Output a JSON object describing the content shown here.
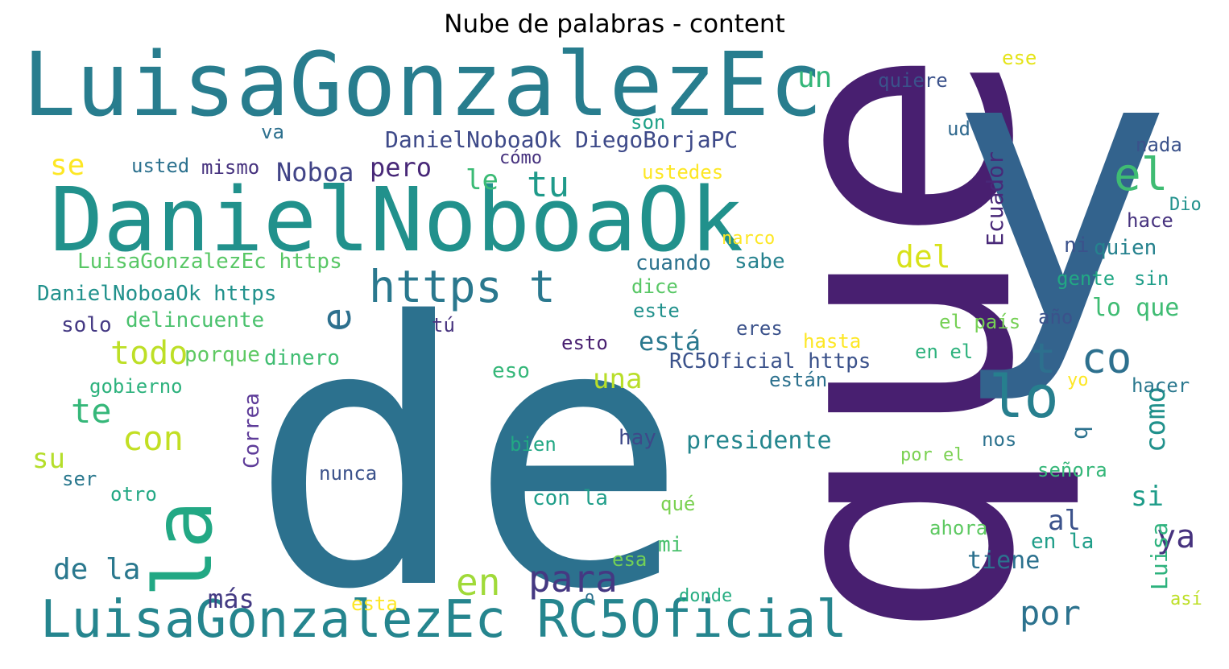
{
  "title": "Nube de palabras - content",
  "chart_data": {
    "type": "wordcloud",
    "title": "Nube de palabras - content",
    "words": [
      {
        "text": "de",
        "color": "#2c718e"
      },
      {
        "text": "que",
        "color": "#481f70"
      },
      {
        "text": "y",
        "color": "#33638d"
      },
      {
        "text": "LuisaGonzalezEc",
        "color": "#287d8e"
      },
      {
        "text": "DanielNoboaOk",
        "color": "#21918c"
      },
      {
        "text": "LuisaGonzalezEc RC5Oficial",
        "color": "#25858e"
      },
      {
        "text": "la",
        "color": "#22a884"
      },
      {
        "text": "https t",
        "color": "#2a788e"
      },
      {
        "text": "lo",
        "color": "#277f8e"
      },
      {
        "text": "t co",
        "color": "#2d708e"
      },
      {
        "text": "el",
        "color": "#3fbc73"
      },
      {
        "text": "e",
        "color": "#2d708e"
      },
      {
        "text": "para",
        "color": "#453882"
      },
      {
        "text": "en",
        "color": "#a0da39"
      },
      {
        "text": "con",
        "color": "#c2df23"
      },
      {
        "text": "te",
        "color": "#35b779"
      },
      {
        "text": "todo",
        "color": "#bddf26"
      },
      {
        "text": "tu",
        "color": "#1f9a8a"
      },
      {
        "text": "un",
        "color": "#34b679"
      },
      {
        "text": "se",
        "color": "#fde725"
      },
      {
        "text": "le",
        "color": "#3bbb75"
      },
      {
        "text": "del",
        "color": "#d8e219"
      },
      {
        "text": "por",
        "color": "#2c728e"
      },
      {
        "text": "ya",
        "color": "#46327e"
      },
      {
        "text": "su",
        "color": "#b5de2b"
      },
      {
        "text": "de la",
        "color": "#2a788e"
      },
      {
        "text": "más",
        "color": "#443a83"
      },
      {
        "text": "pero",
        "color": "#482878"
      },
      {
        "text": "Noboa",
        "color": "#414487"
      },
      {
        "text": "una",
        "color": "#b8de29"
      },
      {
        "text": "está",
        "color": "#2a788e"
      },
      {
        "text": "presidente",
        "color": "#24868e"
      },
      {
        "text": "como",
        "color": "#21918c"
      },
      {
        "text": "si",
        "color": "#1e9c89"
      },
      {
        "text": "al",
        "color": "#3b528b"
      },
      {
        "text": "DanielNoboaOk DiegoBorjaPC",
        "color": "#3e4a89"
      },
      {
        "text": "Ecuador",
        "color": "#482878"
      },
      {
        "text": "lo que",
        "color": "#3fbc73"
      },
      {
        "text": "tiene",
        "color": "#2c718e"
      },
      {
        "text": "Luisa",
        "color": "#2db27d"
      },
      {
        "text": "b",
        "color": "#2c728e"
      },
      {
        "text": "LuisaGonzalezEc https",
        "color": "#58c765"
      },
      {
        "text": "DanielNoboaOk https",
        "color": "#21918c"
      },
      {
        "text": "RC5Oficial https",
        "color": "#3b528b"
      },
      {
        "text": "Correa",
        "color": "#5e3c99"
      },
      {
        "text": "solo",
        "color": "#443983"
      },
      {
        "text": "delincuente",
        "color": "#4ac16d"
      },
      {
        "text": "porque",
        "color": "#5ec962"
      },
      {
        "text": "dinero",
        "color": "#40bd72"
      },
      {
        "text": "usted",
        "color": "#2c718e"
      },
      {
        "text": "mismo",
        "color": "#46327e"
      },
      {
        "text": "va",
        "color": "#2d708e"
      },
      {
        "text": "son",
        "color": "#1fa188"
      },
      {
        "text": "cómo",
        "color": "#46327e"
      },
      {
        "text": "ustedes",
        "color": "#fde725"
      },
      {
        "text": "quiere",
        "color": "#3b528b"
      },
      {
        "text": "ese",
        "color": "#e5e419"
      },
      {
        "text": "ud",
        "color": "#30698e"
      },
      {
        "text": "nada",
        "color": "#3b528b"
      },
      {
        "text": "Dio",
        "color": "#21918c"
      },
      {
        "text": "hace",
        "color": "#46327e"
      },
      {
        "text": "quien",
        "color": "#26828e"
      },
      {
        "text": "ni",
        "color": "#3b528b"
      },
      {
        "text": "narco",
        "color": "#fde725"
      },
      {
        "text": "sabe",
        "color": "#26828e"
      },
      {
        "text": "cuando",
        "color": "#2c728e"
      },
      {
        "text": "dice",
        "color": "#58c765"
      },
      {
        "text": "este",
        "color": "#21918c"
      },
      {
        "text": "gente",
        "color": "#22a884"
      },
      {
        "text": "sin",
        "color": "#1f9e89"
      },
      {
        "text": "año",
        "color": "#3b528b"
      },
      {
        "text": "el país",
        "color": "#75d054"
      },
      {
        "text": "eres",
        "color": "#3b528b"
      },
      {
        "text": "tú",
        "color": "#46327e"
      },
      {
        "text": "esto",
        "color": "#481f70"
      },
      {
        "text": "hasta",
        "color": "#fde725"
      },
      {
        "text": "en el",
        "color": "#2db27d"
      },
      {
        "text": "eso",
        "color": "#35b779"
      },
      {
        "text": "están",
        "color": "#2c718e"
      },
      {
        "text": "yo",
        "color": "#fde725"
      },
      {
        "text": "hacer",
        "color": "#2a788e"
      },
      {
        "text": "gobierno",
        "color": "#2db27d"
      },
      {
        "text": "bien",
        "color": "#22a884"
      },
      {
        "text": "hay",
        "color": "#3e4989"
      },
      {
        "text": "nos",
        "color": "#2c728e"
      },
      {
        "text": "por el",
        "color": "#7ad151"
      },
      {
        "text": "señora",
        "color": "#35b779"
      },
      {
        "text": "ser",
        "color": "#2a788e"
      },
      {
        "text": "otro",
        "color": "#22a884"
      },
      {
        "text": "nunca",
        "color": "#3b528b"
      },
      {
        "text": "con la",
        "color": "#1f9e89"
      },
      {
        "text": "qué",
        "color": "#7ad151"
      },
      {
        "text": "ahora",
        "color": "#5ec962"
      },
      {
        "text": "en la",
        "color": "#1f9e89"
      },
      {
        "text": "mi",
        "color": "#4ac16d"
      },
      {
        "text": "esa",
        "color": "#73d056"
      },
      {
        "text": "esta",
        "color": "#fde725"
      },
      {
        "text": "o",
        "color": "#2c718e"
      },
      {
        "text": "donde",
        "color": "#26ad81"
      },
      {
        "text": "así",
        "color": "#bddf26"
      }
    ]
  }
}
